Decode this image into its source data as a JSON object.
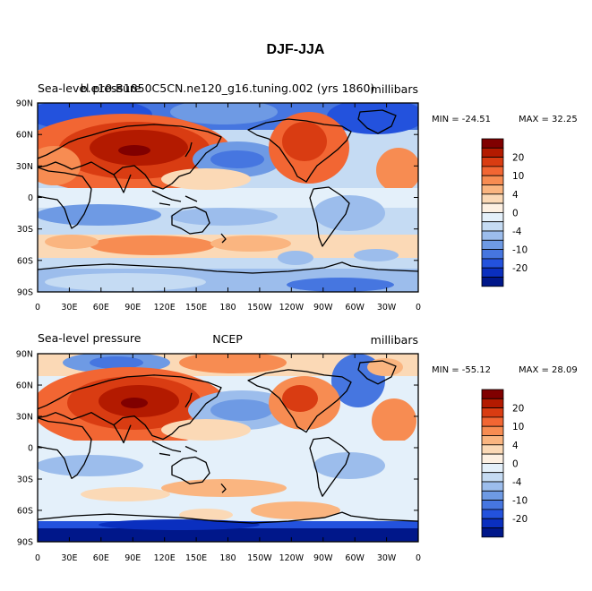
{
  "figure_title": "DJF-JJA",
  "colorbar": {
    "labels": [
      "20",
      "10",
      "4",
      "0",
      "-4",
      "-10",
      "-20"
    ],
    "colors": [
      "#800000",
      "#b31a00",
      "#d93c12",
      "#f26633",
      "#f78c52",
      "#fab580",
      "#fbd9b6",
      "#fdf0e2",
      "#e4f0fa",
      "#c5dbf3",
      "#9cbdec",
      "#6e9ae4",
      "#4676e0",
      "#2352dd",
      "#0a2fbf",
      "#00178a"
    ]
  },
  "chart_data": [
    {
      "type": "heatmap",
      "left_header": "Sea-level pressure",
      "center_header": "b.e10.B1850C5CN.ne120_g16.tuning.002 (yrs 1860)",
      "right_header": "millibars",
      "min_label": "MIN = -24.51",
      "max_label": "MAX =  32.25",
      "min": -24.51,
      "max": 32.25,
      "units": "millibars",
      "contour_levels": [
        -25,
        -20,
        -15,
        -10,
        -7,
        -4,
        -2,
        0,
        2,
        4,
        7,
        10,
        15,
        20,
        25
      ],
      "y_ticks": [
        "90N",
        "60N",
        "30N",
        "0",
        "30S",
        "60S",
        "90S"
      ],
      "x_ticks": [
        "0",
        "30E",
        "60E",
        "90E",
        "120E",
        "150E",
        "180",
        "150W",
        "120W",
        "90W",
        "60W",
        "30W",
        "0"
      ]
    },
    {
      "type": "heatmap",
      "left_header": "Sea-level pressure",
      "center_header": "NCEP",
      "right_header": "millibars",
      "min_label": "MIN = -55.12",
      "max_label": "MAX =  28.09",
      "min": -55.12,
      "max": 28.09,
      "units": "millibars",
      "contour_levels": [
        -25,
        -20,
        -15,
        -10,
        -7,
        -4,
        -2,
        0,
        2,
        4,
        7,
        10,
        15,
        20,
        25
      ],
      "y_ticks": [
        "90N",
        "60N",
        "30N",
        "0",
        "30S",
        "60S",
        "90S"
      ],
      "x_ticks": [
        "0",
        "30E",
        "60E",
        "90E",
        "120E",
        "150E",
        "180",
        "150W",
        "120W",
        "90W",
        "60W",
        "30W",
        "0"
      ]
    }
  ]
}
